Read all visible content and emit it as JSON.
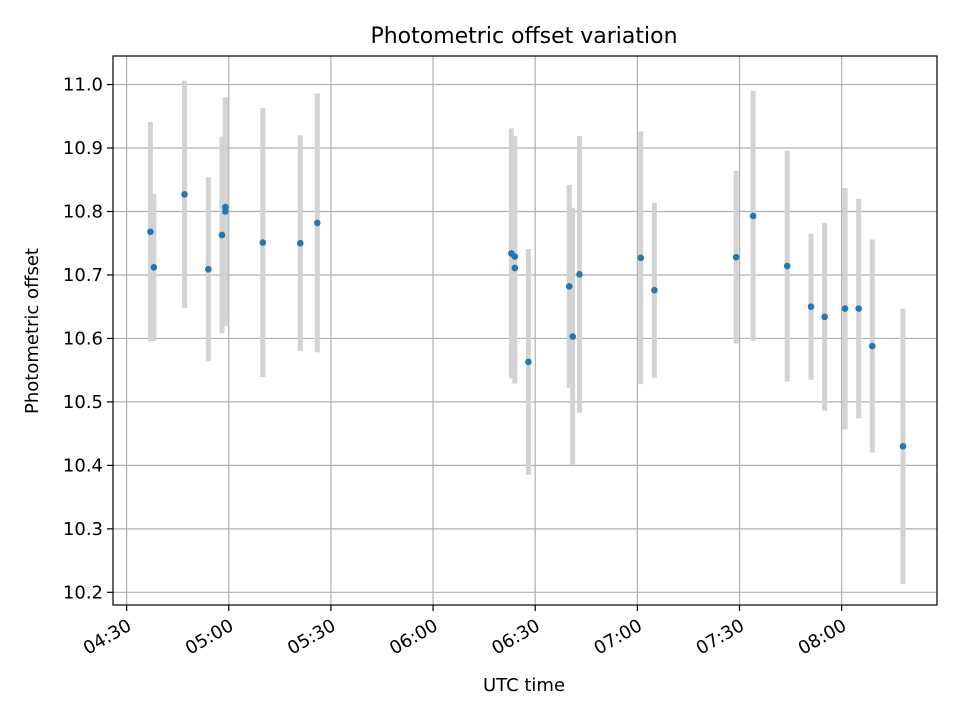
{
  "chart_data": {
    "type": "scatter",
    "title": "Photometric offset variation",
    "xlabel": "UTC time",
    "ylabel": "Photometric offset",
    "x_ticks": [
      "04:30",
      "05:00",
      "05:30",
      "06:00",
      "06:30",
      "07:00",
      "07:30",
      "08:00"
    ],
    "y_ticks": [
      "10.2",
      "10.3",
      "10.4",
      "10.5",
      "10.6",
      "10.7",
      "10.8",
      "10.9",
      "11.0"
    ],
    "xlim": [
      "04:26",
      "08:28"
    ],
    "ylim": [
      10.18,
      11.045
    ],
    "grid": true,
    "errorbar_color": "#d3d3d3",
    "point_color": "#1f77b4",
    "series": [
      {
        "points": [
          {
            "t": "04:37",
            "y": 10.768,
            "err": 0.173
          },
          {
            "t": "04:38",
            "y": 10.712,
            "err": 0.116
          },
          {
            "t": "04:47",
            "y": 10.827,
            "err": 0.179
          },
          {
            "t": "04:54",
            "y": 10.709,
            "err": 0.145
          },
          {
            "t": "04:58",
            "y": 10.763,
            "err": 0.155
          },
          {
            "t": "04:59",
            "y": 10.807,
            "err": 0.172
          },
          {
            "t": "04:59",
            "y": 10.8,
            "err": 0.18
          },
          {
            "t": "05:10",
            "y": 10.751,
            "err": 0.212
          },
          {
            "t": "05:21",
            "y": 10.75,
            "err": 0.17
          },
          {
            "t": "05:26",
            "y": 10.782,
            "err": 0.204
          },
          {
            "t": "06:23",
            "y": 10.734,
            "err": 0.197
          },
          {
            "t": "06:24",
            "y": 10.729,
            "err": 0.19
          },
          {
            "t": "06:24",
            "y": 10.711,
            "err": 0.182
          },
          {
            "t": "06:28",
            "y": 10.563,
            "err": 0.178
          },
          {
            "t": "06:40",
            "y": 10.682,
            "err": 0.16
          },
          {
            "t": "06:41",
            "y": 10.603,
            "err": 0.203
          },
          {
            "t": "06:43",
            "y": 10.701,
            "err": 0.218
          },
          {
            "t": "07:01",
            "y": 10.727,
            "err": 0.199
          },
          {
            "t": "07:05",
            "y": 10.676,
            "err": 0.138
          },
          {
            "t": "07:29",
            "y": 10.728,
            "err": 0.136
          },
          {
            "t": "07:34",
            "y": 10.793,
            "err": 0.197
          },
          {
            "t": "07:44",
            "y": 10.714,
            "err": 0.182
          },
          {
            "t": "07:51",
            "y": 10.65,
            "err": 0.115
          },
          {
            "t": "07:55",
            "y": 10.634,
            "err": 0.148
          },
          {
            "t": "08:01",
            "y": 10.647,
            "err": 0.19
          },
          {
            "t": "08:05",
            "y": 10.647,
            "err": 0.173
          },
          {
            "t": "08:09",
            "y": 10.588,
            "err": 0.168
          },
          {
            "t": "08:18",
            "y": 10.43,
            "err": 0.217
          }
        ]
      }
    ]
  }
}
